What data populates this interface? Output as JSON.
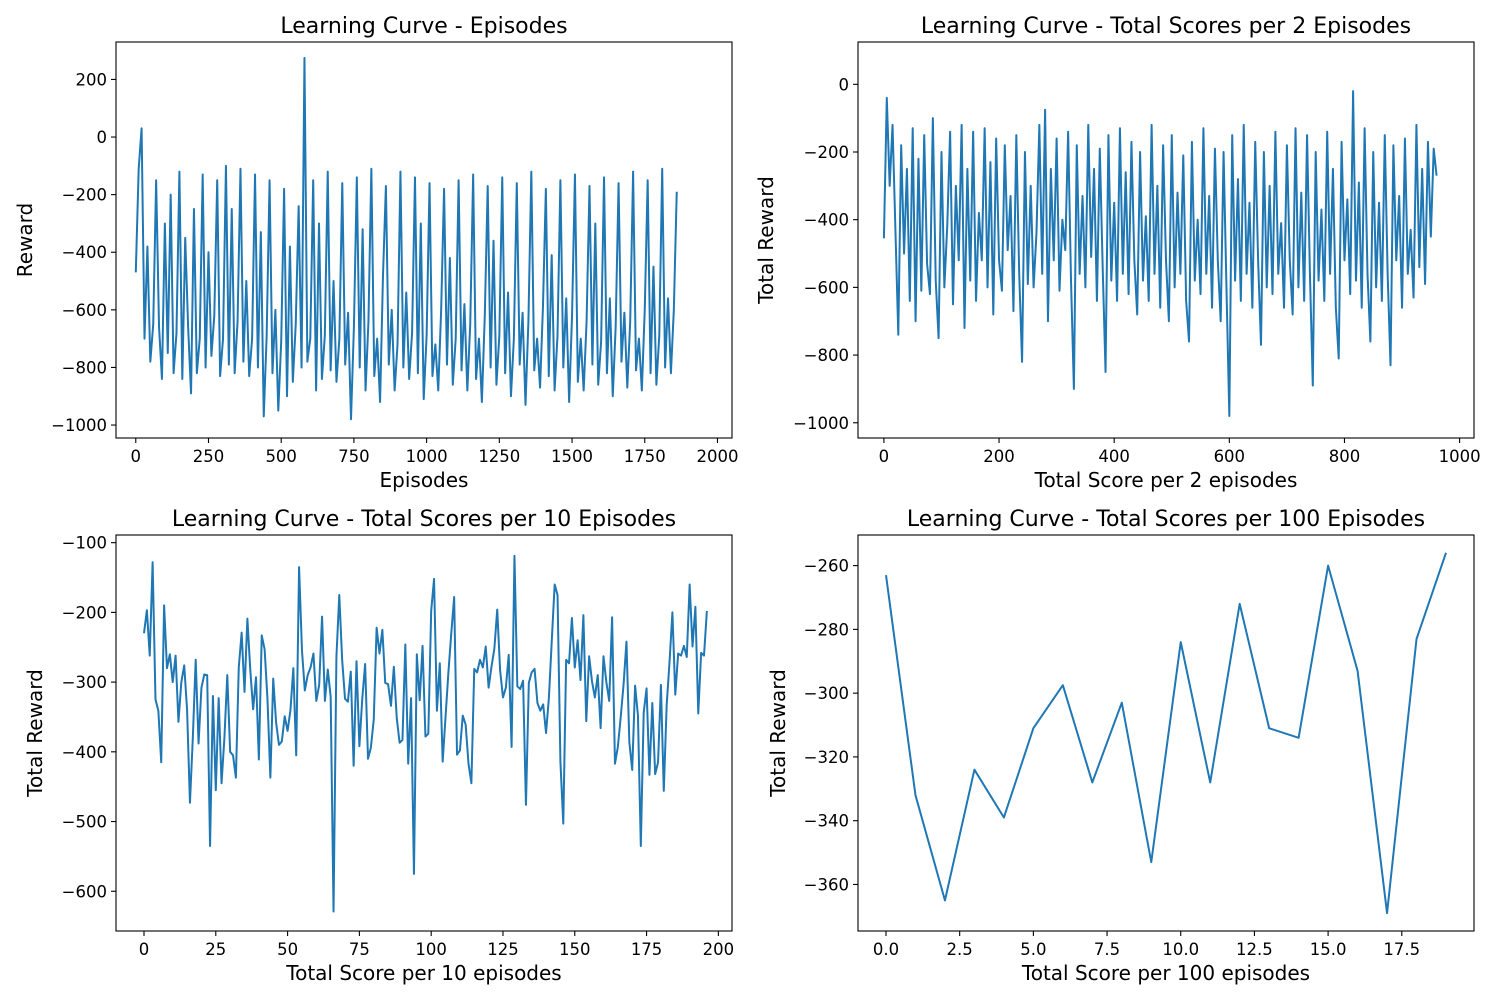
{
  "figure": {
    "background": "#ffffff",
    "line_color": "#1f77b4"
  },
  "chart_data": [
    {
      "type": "line",
      "title": "Learning Curve - Episodes",
      "xlabel": "Episodes",
      "ylabel": "Reward",
      "xlim": [
        -68,
        2050
      ],
      "ylim": [
        -1045,
        330
      ],
      "xticks": [
        0,
        250,
        500,
        750,
        1000,
        1250,
        1500,
        1750,
        2000
      ],
      "xtick_labels": [
        "0",
        "250",
        "500",
        "750",
        "1000",
        "1250",
        "1500",
        "1750",
        "2000"
      ],
      "yticks": [
        200,
        0,
        -200,
        -400,
        -600,
        -800,
        -1000
      ],
      "ytick_labels": [
        "200",
        "0",
        "−200",
        "−400",
        "−600",
        "−800",
        "−1000"
      ],
      "grid": false,
      "series": [
        {
          "color": "#1f77b4",
          "x_start": 0,
          "x_step": 10,
          "values": [
            -470,
            -110,
            30,
            -700,
            -380,
            -780,
            -650,
            -150,
            -660,
            -840,
            -300,
            -750,
            -200,
            -820,
            -680,
            -120,
            -840,
            -350,
            -660,
            -890,
            -250,
            -820,
            -700,
            -130,
            -800,
            -400,
            -760,
            -620,
            -150,
            -830,
            -700,
            -100,
            -790,
            -250,
            -820,
            -640,
            -110,
            -780,
            -500,
            -830,
            -700,
            -130,
            -800,
            -330,
            -970,
            -690,
            -150,
            -820,
            -600,
            -950,
            -710,
            -180,
            -900,
            -380,
            -850,
            -650,
            -240,
            -800,
            275,
            -780,
            -700,
            -150,
            -880,
            -300,
            -840,
            -690,
            -120,
            -810,
            -500,
            -850,
            -700,
            -160,
            -790,
            -610,
            -980,
            -660,
            -140,
            -800,
            -320,
            -880,
            -640,
            -110,
            -830,
            -700,
            -920,
            -480,
            -170,
            -790,
            -600,
            -880,
            -720,
            -120,
            -800,
            -540,
            -840,
            -680,
            -140,
            -820,
            -300,
            -910,
            -690,
            -160,
            -830,
            -720,
            -880,
            -600,
            -180,
            -790,
            -420,
            -860,
            -700,
            -150,
            -810,
            -580,
            -880,
            -650,
            -130,
            -840,
            -700,
            -920,
            -620,
            -170,
            -800,
            -360,
            -860,
            -690,
            -140,
            -820,
            -540,
            -900,
            -700,
            -160,
            -790,
            -610,
            -930,
            -640,
            -120,
            -810,
            -700,
            -870,
            -590,
            -180,
            -830,
            -410,
            -880,
            -690,
            -150,
            -800,
            -560,
            -920,
            -620,
            -130,
            -850,
            -700,
            -880,
            -640,
            -170,
            -790,
            -300,
            -860,
            -710,
            -140,
            -820,
            -560,
            -900,
            -660,
            -160,
            -780,
            -610,
            -870,
            -640,
            -120,
            -810,
            -700,
            -880,
            -600,
            -150,
            -820,
            -450,
            -860,
            -690,
            -110,
            -800,
            -560,
            -820,
            -600,
            -190
          ]
        }
      ]
    },
    {
      "type": "line",
      "title": "Learning Curve - Total Scores per 2 Episodes",
      "xlabel": "Total Score per 2 episodes",
      "ylabel": "Total Reward",
      "xlim": [
        -45,
        1025
      ],
      "ylim": [
        -1045,
        125
      ],
      "xticks": [
        0,
        200,
        400,
        600,
        800,
        1000
      ],
      "xtick_labels": [
        "0",
        "200",
        "400",
        "600",
        "800",
        "1000"
      ],
      "yticks": [
        0,
        -200,
        -400,
        -600,
        -800,
        -1000
      ],
      "ytick_labels": [
        "0",
        "−200",
        "−400",
        "−600",
        "−800",
        "−1000"
      ],
      "grid": false,
      "series": [
        {
          "color": "#1f77b4",
          "x_start": 0,
          "x_step": 5,
          "values": [
            -455,
            -40,
            -300,
            -120,
            -430,
            -740,
            -180,
            -500,
            -250,
            -640,
            -130,
            -700,
            -220,
            -610,
            -150,
            -530,
            -620,
            -100,
            -580,
            -750,
            -200,
            -600,
            -420,
            -140,
            -650,
            -300,
            -520,
            -120,
            -720,
            -250,
            -580,
            -140,
            -640,
            -380,
            -520,
            -130,
            -600,
            -230,
            -680,
            -160,
            -520,
            -610,
            -180,
            -490,
            -330,
            -670,
            -150,
            -560,
            -820,
            -200,
            -590,
            -300,
            -600,
            -440,
            -120,
            -560,
            -75,
            -700,
            -250,
            -520,
            -160,
            -610,
            -400,
            -490,
            -140,
            -580,
            -900,
            -180,
            -560,
            -330,
            -600,
            -120,
            -510,
            -250,
            -640,
            -190,
            -540,
            -850,
            -150,
            -580,
            -350,
            -640,
            -130,
            -560,
            -260,
            -620,
            -170,
            -520,
            -680,
            -200,
            -580,
            -390,
            -640,
            -120,
            -560,
            -300,
            -660,
            -180,
            -520,
            -700,
            -150,
            -600,
            -320,
            -560,
            -210,
            -640,
            -760,
            -170,
            -580,
            -400,
            -620,
            -130,
            -560,
            -330,
            -660,
            -190,
            -520,
            -700,
            -200,
            -600,
            -980,
            -150,
            -580,
            -280,
            -640,
            -120,
            -560,
            -350,
            -660,
            -170,
            -520,
            -770,
            -200,
            -600,
            -300,
            -620,
            -140,
            -560,
            -410,
            -660,
            -180,
            -520,
            -680,
            -130,
            -600,
            -320,
            -640,
            -150,
            -560,
            -890,
            -200,
            -580,
            -370,
            -640,
            -140,
            -560,
            -250,
            -660,
            -810,
            -170,
            -520,
            -340,
            -620,
            -20,
            -580,
            -290,
            -660,
            -130,
            -560,
            -760,
            -200,
            -600,
            -350,
            -640,
            -150,
            -560,
            -830,
            -180,
            -520,
            -330,
            -660,
            -160,
            -560,
            -430,
            -630,
            -120,
            -540,
            -250,
            -590,
            -170,
            -450,
            -190,
            -270
          ]
        }
      ]
    },
    {
      "type": "line",
      "title": "Learning Curve - Total Scores per 10 Episodes",
      "xlabel": "Total Score per 10 episodes",
      "ylabel": "Total Reward",
      "xlim": [
        -9.75,
        204.75
      ],
      "ylim": [
        -657,
        -89
      ],
      "xticks": [
        0,
        25,
        50,
        75,
        100,
        125,
        150,
        175,
        200
      ],
      "xtick_labels": [
        "0",
        "25",
        "50",
        "75",
        "100",
        "125",
        "150",
        "175",
        "200"
      ],
      "yticks": [
        -100,
        -200,
        -300,
        -400,
        -500,
        -600
      ],
      "ytick_labels": [
        "−100",
        "−200",
        "−300",
        "−400",
        "−500",
        "−600"
      ],
      "grid": false,
      "series": [
        {
          "color": "#1f77b4",
          "x_start": 0,
          "x_step": 1,
          "values": [
            -230,
            -197,
            -262,
            -128,
            -325,
            -341,
            -415,
            -190,
            -280,
            -260,
            -300,
            -262,
            -357,
            -300,
            -276,
            -340,
            -473,
            -380,
            -268,
            -388,
            -308,
            -289,
            -290,
            -535,
            -320,
            -455,
            -323,
            -445,
            -380,
            -290,
            -400,
            -405,
            -437,
            -279,
            -229,
            -314,
            -209,
            -282,
            -339,
            -293,
            -411,
            -233,
            -253,
            -325,
            -437,
            -295,
            -358,
            -390,
            -385,
            -349,
            -370,
            -340,
            -280,
            -405,
            -135,
            -254,
            -312,
            -290,
            -279,
            -259,
            -327,
            -304,
            -206,
            -327,
            -282,
            -321,
            -629,
            -264,
            -175,
            -268,
            -324,
            -328,
            -285,
            -420,
            -270,
            -392,
            -324,
            -274,
            -410,
            -394,
            -354,
            -222,
            -259,
            -225,
            -301,
            -303,
            -334,
            -278,
            -351,
            -387,
            -383,
            -246,
            -417,
            -323,
            -575,
            -260,
            -326,
            -248,
            -378,
            -374,
            -198,
            -152,
            -341,
            -273,
            -414,
            -350,
            -286,
            -230,
            -178,
            -404,
            -398,
            -348,
            -361,
            -417,
            -445,
            -281,
            -286,
            -268,
            -279,
            -249,
            -308,
            -278,
            -252,
            -196,
            -283,
            -322,
            -308,
            -261,
            -393,
            -119,
            -306,
            -310,
            -298,
            -476,
            -301,
            -286,
            -281,
            -330,
            -341,
            -332,
            -373,
            -322,
            -240,
            -160,
            -175,
            -414,
            -503,
            -268,
            -273,
            -208,
            -279,
            -240,
            -297,
            -204,
            -356,
            -263,
            -299,
            -322,
            -290,
            -366,
            -263,
            -300,
            -327,
            -207,
            -417,
            -393,
            -350,
            -303,
            -242,
            -386,
            -426,
            -305,
            -348,
            -535,
            -344,
            -309,
            -433,
            -330,
            -432,
            -415,
            -304,
            -456,
            -333,
            -271,
            -200,
            -318,
            -259,
            -262,
            -248,
            -264,
            -160,
            -249,
            -192,
            -345,
            -258,
            -262,
            -198
          ]
        }
      ]
    },
    {
      "type": "line",
      "title": "Learning Curve - Total Scores per 100 Episodes",
      "xlabel": "Total Score per 100 episodes",
      "ylabel": "Total Reward",
      "xlim": [
        -0.95,
        19.95
      ],
      "ylim": [
        -374.6,
        -250.4
      ],
      "xticks": [
        0,
        2.5,
        5,
        7.5,
        10,
        12.5,
        15,
        17.5
      ],
      "xtick_labels": [
        "0.0",
        "2.5",
        "5.0",
        "7.5",
        "10.0",
        "12.5",
        "15.0",
        "17.5"
      ],
      "yticks": [
        -260,
        -280,
        -300,
        -320,
        -340,
        -360
      ],
      "ytick_labels": [
        "−260",
        "−280",
        "−300",
        "−320",
        "−340",
        "−360"
      ],
      "grid": false,
      "series": [
        {
          "color": "#1f77b4",
          "x_start": 0,
          "x_step": 1,
          "values": [
            -263,
            -332,
            -365,
            -324,
            -339,
            -311,
            -297.5,
            -328,
            -303,
            -353,
            -284,
            -328,
            -272,
            -311,
            -314,
            -260,
            -293,
            -369,
            -283,
            -256
          ]
        }
      ]
    }
  ]
}
